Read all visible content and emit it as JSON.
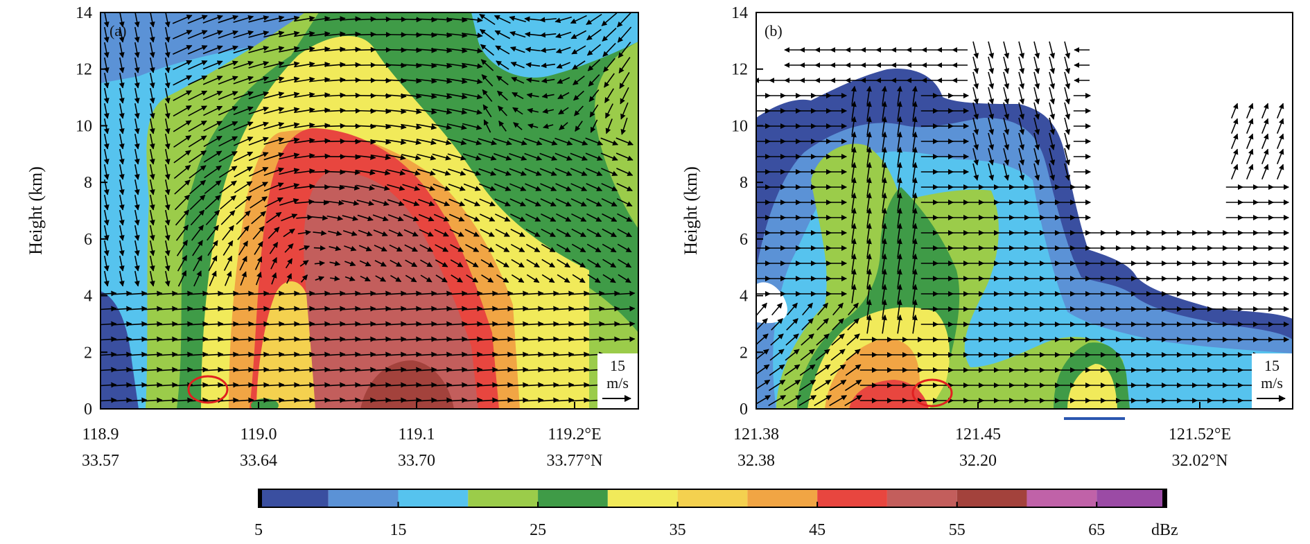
{
  "chart_data": [
    {
      "type": "heatmap",
      "panel": "(a)",
      "ylabel": "Height (km)",
      "ylim": [
        0,
        14
      ],
      "yticks": [
        "0",
        "2",
        "4",
        "6",
        "8",
        "10",
        "12",
        "14"
      ],
      "x_ticks_lon": [
        "118.9",
        "119.0",
        "119.1",
        "119.2°E"
      ],
      "x_ticks_lat": [
        "33.57",
        "33.64",
        "33.70",
        "33.77°N"
      ],
      "reference_vector": {
        "value": "15",
        "unit": "m/s"
      },
      "annotations": [
        "red circle near surface at about 118.97°E"
      ],
      "reflectivity_core_max_dbz": "55-60",
      "grid": false
    },
    {
      "type": "heatmap",
      "panel": "(b)",
      "ylabel": "Height (km)",
      "ylim": [
        0,
        14
      ],
      "yticks": [
        "0",
        "2",
        "4",
        "6",
        "8",
        "10",
        "12",
        "14"
      ],
      "x_ticks_lon": [
        "121.38",
        "121.45",
        "121.52°E"
      ],
      "x_ticks_lat": [
        "32.38",
        "32.20",
        "32.02°N"
      ],
      "reference_vector": {
        "value": "15",
        "unit": "m/s"
      },
      "annotations": [
        "red circle near surface at about 121.43°E",
        "blue bar below axis between 121.47 and 121.48°E"
      ],
      "reflectivity_core_max_dbz": "45-50",
      "grid": false
    }
  ],
  "colorbar": {
    "unit": "dBz",
    "tick_labels": [
      "5",
      "15",
      "25",
      "35",
      "45",
      "55",
      "65"
    ],
    "bins": [
      5,
      10,
      15,
      20,
      25,
      30,
      35,
      40,
      45,
      50,
      55,
      60,
      65,
      70
    ],
    "colors": [
      "#3a4fa0",
      "#5b92d6",
      "#56c3ee",
      "#9bcc4a",
      "#3f9b47",
      "#f1ea5a",
      "#f4d14f",
      "#f1a544",
      "#e8463f",
      "#c35e5c",
      "#a3423c",
      "#c062a8",
      "#9b4ba5"
    ]
  },
  "vector_color": "#000000",
  "annotation_colors": {
    "circle": "#e02020",
    "bar": "#2a56b0"
  }
}
